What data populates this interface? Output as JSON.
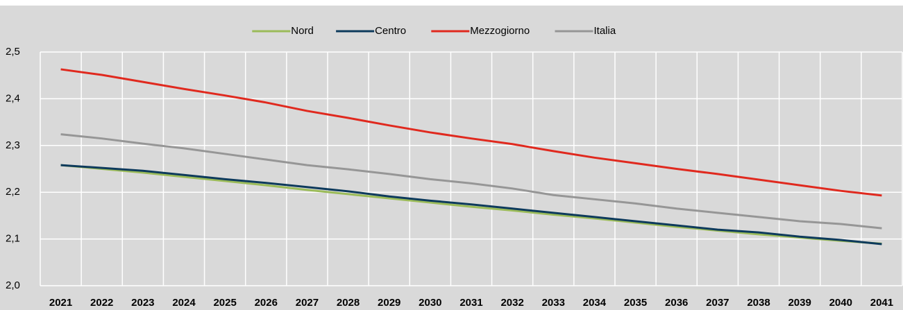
{
  "chart_data": {
    "type": "line",
    "categories": [
      "2021",
      "2022",
      "2023",
      "2024",
      "2025",
      "2026",
      "2027",
      "2028",
      "2029",
      "2030",
      "2031",
      "2032",
      "2033",
      "2034",
      "2035",
      "2036",
      "2037",
      "2038",
      "2039",
      "2040",
      "2041"
    ],
    "series": [
      {
        "name": "Nord",
        "color": "#9bbb59",
        "values": [
          2.258,
          2.25,
          2.242,
          2.233,
          2.224,
          2.215,
          2.205,
          2.196,
          2.187,
          2.178,
          2.169,
          2.161,
          2.152,
          2.144,
          2.135,
          2.126,
          2.118,
          2.11,
          2.103,
          2.096,
          2.09
        ]
      },
      {
        "name": "Centro",
        "color": "#0d3a5c",
        "values": [
          2.258,
          2.252,
          2.246,
          2.237,
          2.228,
          2.22,
          2.211,
          2.202,
          2.191,
          2.182,
          2.174,
          2.165,
          2.156,
          2.147,
          2.138,
          2.129,
          2.12,
          2.114,
          2.105,
          2.098,
          2.089
        ]
      },
      {
        "name": "Mezzogiorno",
        "color": "#e0291e",
        "values": [
          2.463,
          2.451,
          2.436,
          2.421,
          2.407,
          2.392,
          2.374,
          2.359,
          2.343,
          2.328,
          2.315,
          2.303,
          2.288,
          2.274,
          2.262,
          2.25,
          2.239,
          2.227,
          2.215,
          2.203,
          2.193
        ]
      },
      {
        "name": "Italia",
        "color": "#969696",
        "values": [
          2.324,
          2.315,
          2.304,
          2.294,
          2.282,
          2.27,
          2.258,
          2.249,
          2.239,
          2.228,
          2.219,
          2.208,
          2.194,
          2.185,
          2.176,
          2.165,
          2.156,
          2.147,
          2.138,
          2.132,
          2.123
        ]
      }
    ],
    "ylim": [
      2.0,
      2.5
    ],
    "yticks": [
      {
        "value": 2.0,
        "label": "2,0"
      },
      {
        "value": 2.1,
        "label": "2,1"
      },
      {
        "value": 2.2,
        "label": "2,2"
      },
      {
        "value": 2.3,
        "label": "2,3"
      },
      {
        "value": 2.4,
        "label": "2,4"
      },
      {
        "value": 2.5,
        "label": "2,5"
      }
    ],
    "grid": true
  }
}
